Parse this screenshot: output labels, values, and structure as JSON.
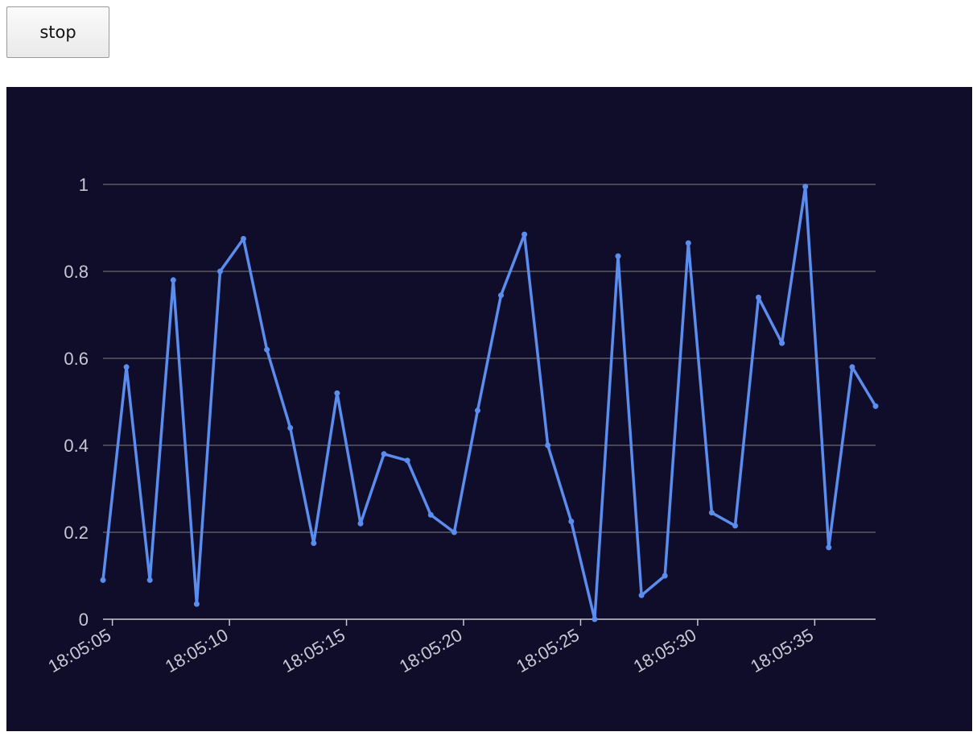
{
  "controls": {
    "stop_label": "stop"
  },
  "colors": {
    "background": "#0f0d29",
    "line": "#5b8def",
    "grid": "#5a5a66",
    "axis": "#c8c8d4",
    "tick_text": "#c8c8d4"
  },
  "chart_data": {
    "type": "line",
    "title": "",
    "xlabel": "",
    "ylabel": "",
    "ylim": [
      0,
      1
    ],
    "yticks": [
      "0",
      "0.2",
      "0.4",
      "0.6",
      "0.8",
      "1"
    ],
    "xticks": [
      "18:05:05",
      "18:05:10",
      "18:05:15",
      "18:05:20",
      "18:05:25",
      "18:05:30",
      "18:05:35"
    ],
    "grid": "horizontal",
    "x": [
      "18:05:04.6",
      "18:05:05.6",
      "18:05:06.6",
      "18:05:07.6",
      "18:05:08.6",
      "18:05:09.6",
      "18:05:10.6",
      "18:05:11.6",
      "18:05:12.6",
      "18:05:13.6",
      "18:05:14.6",
      "18:05:15.6",
      "18:05:16.6",
      "18:05:17.6",
      "18:05:18.6",
      "18:05:19.6",
      "18:05:20.6",
      "18:05:21.6",
      "18:05:22.6",
      "18:05:23.6",
      "18:05:24.6",
      "18:05:25.6",
      "18:05:26.6",
      "18:05:27.6",
      "18:05:28.6",
      "18:05:29.6",
      "18:05:30.6",
      "18:05:31.6",
      "18:05:32.6",
      "18:05:33.6",
      "18:05:34.6",
      "18:05:35.6",
      "18:05:36.6",
      "18:05:37.6"
    ],
    "series": [
      {
        "values": [
          0.09,
          0.58,
          0.09,
          0.78,
          0.035,
          0.8,
          0.875,
          0.62,
          0.44,
          0.175,
          0.52,
          0.22,
          0.38,
          0.365,
          0.24,
          0.2,
          0.48,
          0.745,
          0.885,
          0.4,
          0.225,
          0.0,
          0.835,
          0.055,
          0.1,
          0.865,
          0.245,
          0.215,
          0.74,
          0.635,
          0.995,
          0.165,
          0.58,
          0.49
        ]
      }
    ]
  }
}
